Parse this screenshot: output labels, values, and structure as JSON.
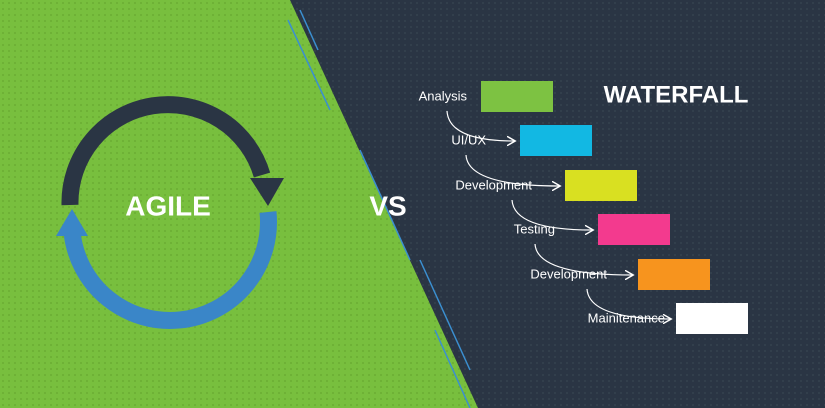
{
  "left": {
    "label": "AGILE"
  },
  "separator": "VS",
  "right": {
    "title": "WATERFALL",
    "steps": [
      {
        "label": "Analysis",
        "color": "#7dc242"
      },
      {
        "label": "UI/UX",
        "color": "#12b8e3"
      },
      {
        "label": "Development",
        "color": "#d9e021"
      },
      {
        "label": "Testing",
        "color": "#f33a8e"
      },
      {
        "label": "Development",
        "color": "#f7941e"
      },
      {
        "label": "Mainitenance",
        "color": "#ffffff"
      }
    ]
  }
}
